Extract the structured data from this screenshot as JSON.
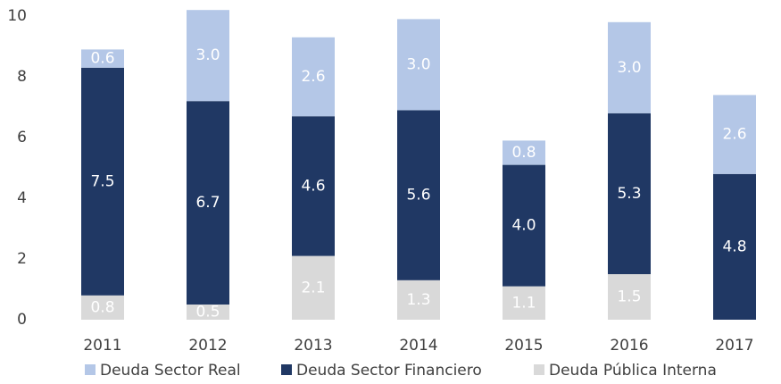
{
  "chart_data": {
    "type": "stacked_bar",
    "categories": [
      "2011",
      "2012",
      "2013",
      "2014",
      "2015",
      "2016",
      "2017"
    ],
    "series": [
      {
        "name": "Deuda Sector Real",
        "color": "#b4c7e7",
        "values": [
          0.6,
          3.0,
          2.6,
          3.0,
          0.8,
          3.0,
          2.6
        ],
        "value_labels": [
          "0.6",
          "3.0",
          "2.6",
          "3.0",
          "0.8",
          "3.0",
          "2.6"
        ]
      },
      {
        "name": "Deuda Sector Financiero",
        "color": "#203864",
        "values": [
          7.5,
          6.7,
          4.6,
          5.6,
          4.0,
          5.3,
          4.8
        ],
        "value_labels": [
          "7.5",
          "6.7",
          "4.6",
          "5.6",
          "4.0",
          "5.3",
          "4.8"
        ]
      },
      {
        "name": "Deuda Pública Interna",
        "color": "#d9d9d9",
        "values": [
          0.8,
          0.5,
          2.1,
          1.3,
          1.1,
          1.5,
          null
        ],
        "value_labels": [
          "0.8",
          "0.5",
          "2.1",
          "1.3",
          "1.1",
          "1.5",
          null
        ]
      }
    ],
    "ylim": [
      0,
      10
    ],
    "yticks": [
      0,
      2,
      4,
      6,
      8,
      10
    ],
    "grid": false,
    "legend": "bottom"
  }
}
